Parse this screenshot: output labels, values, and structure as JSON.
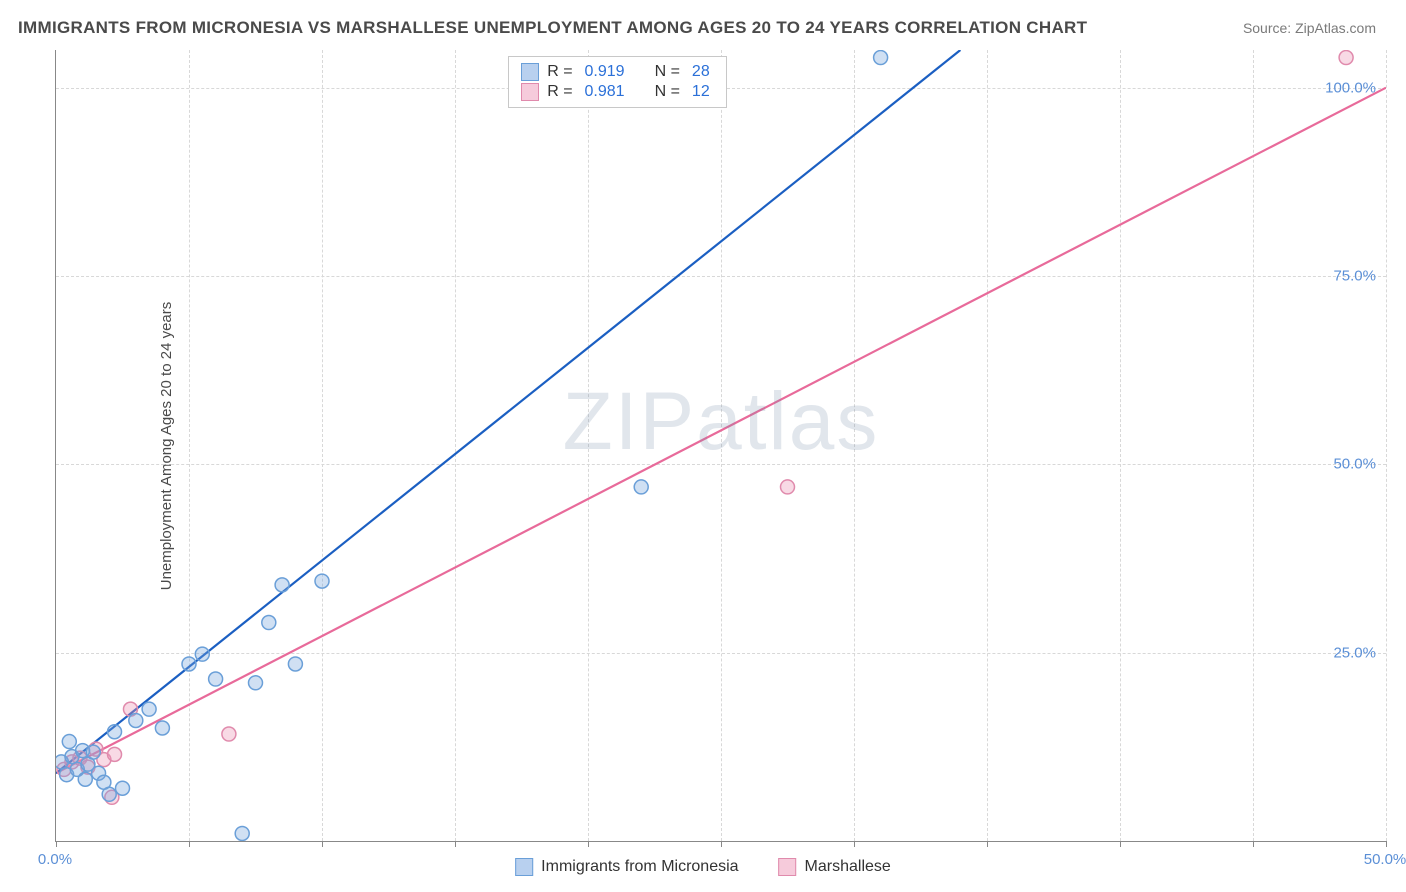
{
  "title": "IMMIGRANTS FROM MICRONESIA VS MARSHALLESE UNEMPLOYMENT AMONG AGES 20 TO 24 YEARS CORRELATION CHART",
  "source": "Source: ZipAtlas.com",
  "watermark": "ZIPatlas",
  "y_axis_label": "Unemployment Among Ages 20 to 24 years",
  "chart": {
    "type": "scatter",
    "xlim": [
      0,
      50
    ],
    "ylim": [
      0,
      105
    ],
    "x_ticks": [
      0,
      5,
      10,
      15,
      20,
      25,
      30,
      35,
      40,
      45,
      50
    ],
    "x_tick_labels": {
      "0": "0.0%",
      "50": "50.0%"
    },
    "y_ticks": [
      25,
      50,
      75,
      100
    ],
    "y_tick_labels": {
      "25": "25.0%",
      "50": "50.0%",
      "75": "75.0%",
      "100": "100.0%"
    },
    "background_color": "#ffffff",
    "grid_color": "#d8d8d8",
    "axis_color": "#888888",
    "marker_radius": 7,
    "marker_stroke_width": 1.5,
    "line_width": 2.2
  },
  "series": [
    {
      "name": "Immigrants from Micronesia",
      "fill_color": "rgba(120,165,220,0.35)",
      "stroke_color": "#6a9fd8",
      "line_color": "#1b5fc2",
      "swatch_fill": "#b8d0ef",
      "swatch_border": "#6a9fd8",
      "R": "0.919",
      "N": "28",
      "trend": {
        "x1": 0,
        "y1": 9,
        "x2": 34,
        "y2": 105
      },
      "points": [
        [
          0.2,
          10.5
        ],
        [
          0.4,
          8.8
        ],
        [
          0.6,
          11.2
        ],
        [
          0.8,
          9.5
        ],
        [
          1.0,
          12.0
        ],
        [
          1.2,
          10.2
        ],
        [
          1.4,
          11.8
        ],
        [
          1.6,
          9.0
        ],
        [
          1.8,
          7.8
        ],
        [
          0.5,
          13.2
        ],
        [
          2.0,
          6.2
        ],
        [
          2.5,
          7.0
        ],
        [
          2.2,
          14.5
        ],
        [
          3.0,
          16.0
        ],
        [
          3.5,
          17.5
        ],
        [
          1.1,
          8.2
        ],
        [
          4.0,
          15.0
        ],
        [
          5.0,
          23.5
        ],
        [
          5.5,
          24.8
        ],
        [
          6.0,
          21.5
        ],
        [
          7.5,
          21.0
        ],
        [
          8.0,
          29.0
        ],
        [
          9.0,
          23.5
        ],
        [
          8.5,
          34.0
        ],
        [
          10.0,
          34.5
        ],
        [
          7.0,
          1.0
        ],
        [
          22.0,
          47.0
        ],
        [
          31.0,
          104.0
        ]
      ]
    },
    {
      "name": "Marshallese",
      "fill_color": "rgba(235,150,180,0.35)",
      "stroke_color": "#e08aac",
      "line_color": "#e86a9a",
      "swatch_fill": "#f6cbdb",
      "swatch_border": "#e08aac",
      "R": "0.981",
      "N": "12",
      "trend": {
        "x1": 0,
        "y1": 9,
        "x2": 50,
        "y2": 100
      },
      "points": [
        [
          0.3,
          9.5
        ],
        [
          0.6,
          10.5
        ],
        [
          0.9,
          11.0
        ],
        [
          1.2,
          9.8
        ],
        [
          1.5,
          12.2
        ],
        [
          1.8,
          10.8
        ],
        [
          2.2,
          11.5
        ],
        [
          2.1,
          5.8
        ],
        [
          2.8,
          17.5
        ],
        [
          6.5,
          14.2
        ],
        [
          27.5,
          47.0
        ],
        [
          48.5,
          104.0
        ]
      ]
    }
  ],
  "legend_labels": {
    "R_prefix": "R =",
    "N_prefix": "N ="
  }
}
